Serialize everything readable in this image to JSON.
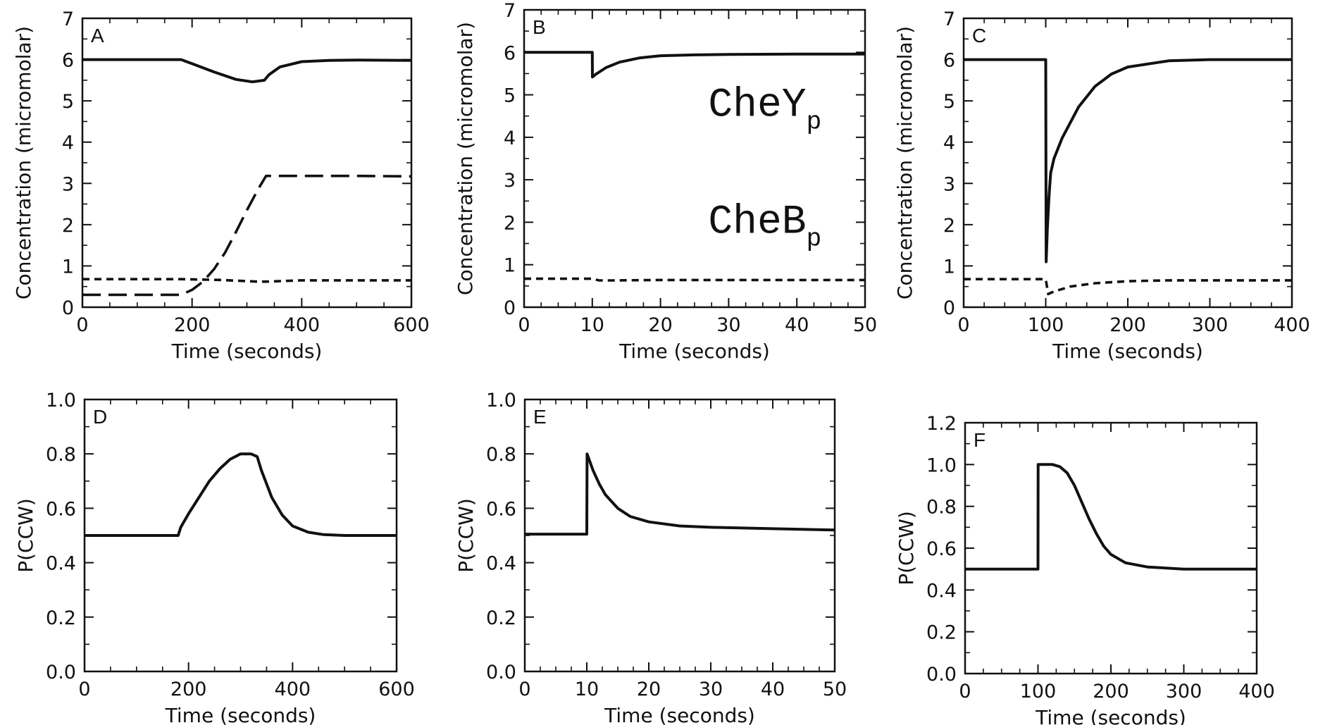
{
  "chart_data": [
    {
      "panel": "A",
      "type": "line",
      "xlabel": "Time  (seconds)",
      "ylabel": "Concentration  (micromolar)",
      "xlim": [
        0,
        600
      ],
      "ylim": [
        0,
        7
      ],
      "xticks": [
        0,
        200,
        400,
        600
      ],
      "yticks": [
        0,
        1,
        2,
        3,
        4,
        5,
        6,
        7
      ],
      "series": [
        {
          "style": "solid",
          "x": [
            0,
            180,
            200,
            240,
            280,
            310,
            332,
            340,
            360,
            400,
            450,
            500,
            600
          ],
          "y": [
            6.0,
            6.0,
            5.9,
            5.7,
            5.52,
            5.46,
            5.5,
            5.63,
            5.82,
            5.95,
            5.98,
            5.99,
            5.98
          ]
        },
        {
          "style": "dashed",
          "x": [
            0,
            180,
            200,
            220,
            240,
            260,
            280,
            300,
            320,
            335,
            400,
            500,
            600
          ],
          "y": [
            0.3,
            0.3,
            0.42,
            0.62,
            0.92,
            1.32,
            1.82,
            2.35,
            2.85,
            3.18,
            3.18,
            3.18,
            3.17
          ]
        },
        {
          "style": "dotted",
          "x": [
            0,
            180,
            250,
            320,
            335,
            400,
            500,
            600
          ],
          "y": [
            0.68,
            0.68,
            0.66,
            0.62,
            0.62,
            0.65,
            0.65,
            0.65
          ]
        }
      ]
    },
    {
      "panel": "B",
      "type": "line",
      "xlabel": "Time  (seconds)",
      "ylabel": "Concentration  (micromolar)",
      "xlim": [
        0,
        50
      ],
      "ylim": [
        0,
        7
      ],
      "xticks": [
        0,
        10,
        20,
        30,
        40,
        50
      ],
      "yticks": [
        0,
        1,
        2,
        3,
        4,
        5,
        6,
        7
      ],
      "annotations": [
        {
          "text": "CheY",
          "sub": "p",
          "x": 27,
          "y": 4.5
        },
        {
          "text": "CheB",
          "sub": "p",
          "x": 27,
          "y": 1.75
        }
      ],
      "series": [
        {
          "style": "solid",
          "x": [
            0,
            10,
            10.02,
            10.5,
            12,
            14,
            17,
            20,
            25,
            30,
            40,
            50
          ],
          "y": [
            6.0,
            6.0,
            5.42,
            5.48,
            5.64,
            5.77,
            5.87,
            5.92,
            5.94,
            5.95,
            5.96,
            5.96
          ]
        },
        {
          "style": "dotted",
          "x": [
            0,
            10,
            11,
            13,
            20,
            30,
            40,
            50
          ],
          "y": [
            0.67,
            0.67,
            0.63,
            0.63,
            0.64,
            0.64,
            0.64,
            0.64
          ]
        }
      ]
    },
    {
      "panel": "C",
      "type": "line",
      "xlabel": "Time  (seconds)",
      "ylabel": "Concentration  (micromolar)",
      "xlim": [
        0,
        400
      ],
      "ylim": [
        0,
        7
      ],
      "xticks": [
        0,
        100,
        200,
        300,
        400
      ],
      "yticks": [
        0,
        1,
        2,
        3,
        4,
        5,
        6,
        7
      ],
      "series": [
        {
          "style": "solid",
          "x": [
            0,
            100,
            100.5,
            102,
            104,
            106,
            110,
            120,
            140,
            160,
            180,
            200,
            250,
            300,
            400
          ],
          "y": [
            6.0,
            6.0,
            1.1,
            1.9,
            2.7,
            3.25,
            3.6,
            4.1,
            4.85,
            5.35,
            5.65,
            5.82,
            5.97,
            6.0,
            6.0
          ]
        },
        {
          "style": "dotted",
          "x": [
            0,
            100,
            103,
            110,
            130,
            160,
            200,
            250,
            300,
            400
          ],
          "y": [
            0.68,
            0.68,
            0.32,
            0.38,
            0.5,
            0.58,
            0.63,
            0.65,
            0.65,
            0.65
          ]
        }
      ]
    },
    {
      "panel": "D",
      "type": "line",
      "xlabel": "Time  (seconds)",
      "ylabel": "P(CCW)",
      "xlim": [
        0,
        600
      ],
      "ylim": [
        0,
        1.0
      ],
      "xticks": [
        0,
        200,
        400,
        600
      ],
      "yticks": [
        0.0,
        0.2,
        0.4,
        0.6,
        0.8,
        1.0
      ],
      "series": [
        {
          "style": "solid",
          "x": [
            0,
            180,
            185,
            200,
            220,
            240,
            260,
            280,
            300,
            320,
            332,
            340,
            360,
            380,
            400,
            430,
            460,
            500,
            600
          ],
          "y": [
            0.5,
            0.5,
            0.53,
            0.58,
            0.64,
            0.7,
            0.745,
            0.78,
            0.8,
            0.8,
            0.79,
            0.74,
            0.64,
            0.575,
            0.535,
            0.512,
            0.503,
            0.5,
            0.5
          ]
        }
      ]
    },
    {
      "panel": "E",
      "type": "line",
      "xlabel": "Time  (seconds)",
      "ylabel": "P(CCW)",
      "xlim": [
        0,
        50
      ],
      "ylim": [
        0,
        1.0
      ],
      "xticks": [
        0,
        10,
        20,
        30,
        40,
        50
      ],
      "yticks": [
        0.0,
        0.2,
        0.4,
        0.6,
        0.8,
        1.0
      ],
      "series": [
        {
          "style": "solid",
          "x": [
            0,
            10,
            10.05,
            11,
            12,
            13,
            15,
            17,
            20,
            25,
            30,
            40,
            50
          ],
          "y": [
            0.505,
            0.505,
            0.8,
            0.74,
            0.69,
            0.65,
            0.6,
            0.57,
            0.55,
            0.535,
            0.53,
            0.525,
            0.52
          ]
        }
      ]
    },
    {
      "panel": "F",
      "type": "line",
      "xlabel": "Time  (seconds)",
      "ylabel": "P(CCW)",
      "xlim": [
        0,
        400
      ],
      "ylim": [
        0,
        1.2
      ],
      "xticks": [
        0,
        100,
        200,
        300,
        400
      ],
      "yticks": [
        0.0,
        0.2,
        0.4,
        0.6,
        0.8,
        1.0,
        1.2
      ],
      "series": [
        {
          "style": "solid",
          "x": [
            0,
            100,
            100.2,
            120,
            130,
            140,
            150,
            160,
            170,
            180,
            190,
            200,
            220,
            250,
            300,
            400
          ],
          "y": [
            0.5,
            0.5,
            1.0,
            1.0,
            0.99,
            0.96,
            0.9,
            0.82,
            0.74,
            0.67,
            0.61,
            0.57,
            0.53,
            0.51,
            0.5,
            0.5
          ]
        }
      ]
    }
  ]
}
